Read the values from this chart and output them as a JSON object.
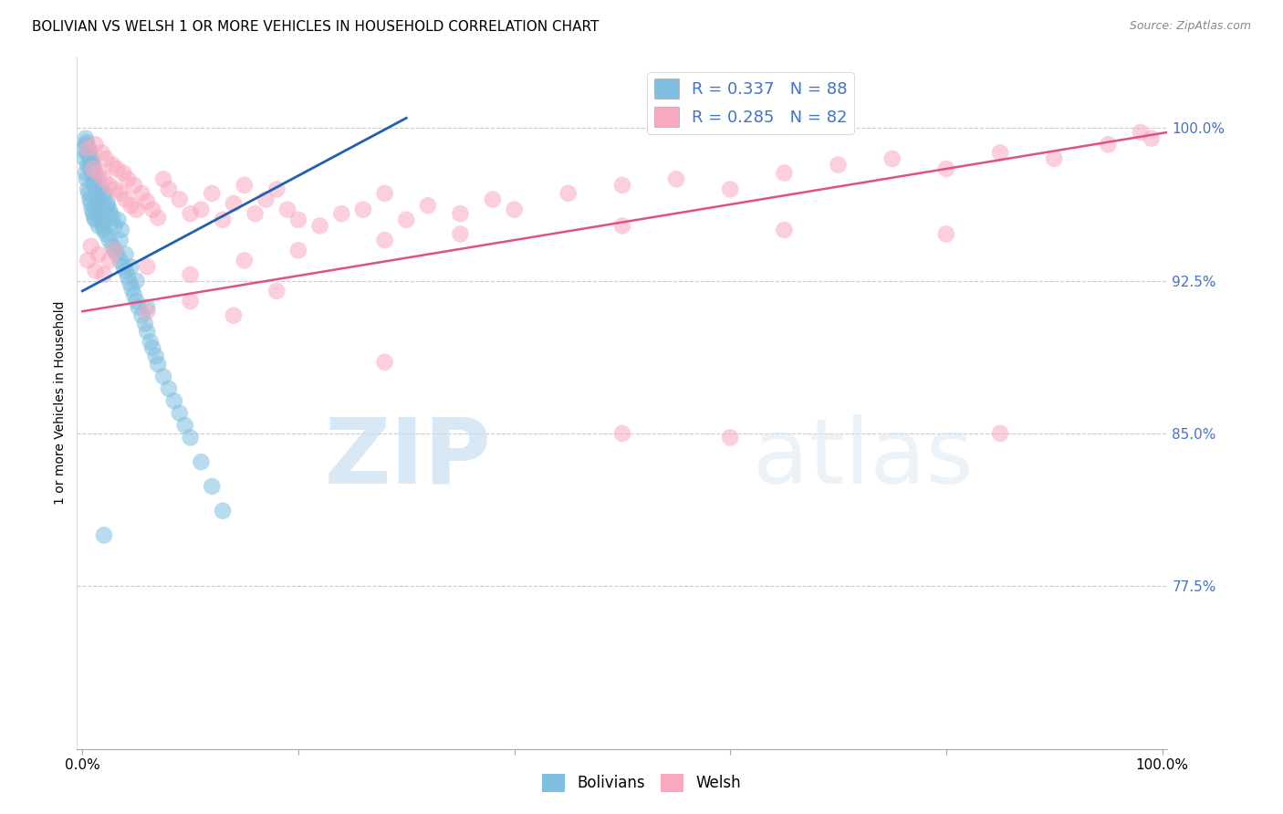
{
  "title": "BOLIVIAN VS WELSH 1 OR MORE VEHICLES IN HOUSEHOLD CORRELATION CHART",
  "source": "Source: ZipAtlas.com",
  "ylabel": "1 or more Vehicles in Household",
  "ytick_labels": [
    "100.0%",
    "92.5%",
    "85.0%",
    "77.5%"
  ],
  "ytick_values": [
    1.0,
    0.925,
    0.85,
    0.775
  ],
  "ymin": 0.695,
  "ymax": 1.035,
  "xmin": -0.005,
  "xmax": 1.005,
  "blue_color": "#7fbfdf",
  "pink_color": "#f8a8bf",
  "blue_line_color": "#2060b0",
  "pink_line_color": "#e05080",
  "watermark_zip": "ZIP",
  "watermark_atlas": "atlas",
  "blue_x": [
    0.001,
    0.002,
    0.003,
    0.003,
    0.004,
    0.004,
    0.005,
    0.005,
    0.006,
    0.006,
    0.007,
    0.007,
    0.008,
    0.008,
    0.009,
    0.009,
    0.01,
    0.01,
    0.011,
    0.011,
    0.012,
    0.012,
    0.013,
    0.014,
    0.015,
    0.015,
    0.016,
    0.017,
    0.018,
    0.019,
    0.02,
    0.02,
    0.022,
    0.023,
    0.025,
    0.026,
    0.028,
    0.03,
    0.032,
    0.033,
    0.035,
    0.036,
    0.038,
    0.04,
    0.042,
    0.044,
    0.046,
    0.048,
    0.05,
    0.052,
    0.055,
    0.058,
    0.06,
    0.063,
    0.065,
    0.068,
    0.07,
    0.075,
    0.08,
    0.085,
    0.09,
    0.095,
    0.1,
    0.11,
    0.12,
    0.13,
    0.003,
    0.004,
    0.005,
    0.006,
    0.007,
    0.008,
    0.009,
    0.01,
    0.012,
    0.015,
    0.018,
    0.02,
    0.023,
    0.025,
    0.028,
    0.03,
    0.035,
    0.04,
    0.045,
    0.05,
    0.06,
    0.02
  ],
  "blue_y": [
    0.99,
    0.985,
    0.992,
    0.978,
    0.988,
    0.975,
    0.982,
    0.97,
    0.987,
    0.968,
    0.983,
    0.965,
    0.98,
    0.963,
    0.978,
    0.96,
    0.975,
    0.958,
    0.973,
    0.956,
    0.97,
    0.955,
    0.968,
    0.965,
    0.963,
    0.952,
    0.96,
    0.958,
    0.955,
    0.952,
    0.95,
    0.968,
    0.948,
    0.962,
    0.945,
    0.958,
    0.942,
    0.94,
    0.938,
    0.955,
    0.935,
    0.95,
    0.932,
    0.93,
    0.927,
    0.924,
    0.921,
    0.918,
    0.915,
    0.912,
    0.908,
    0.904,
    0.9,
    0.895,
    0.892,
    0.888,
    0.884,
    0.878,
    0.872,
    0.866,
    0.86,
    0.854,
    0.848,
    0.836,
    0.824,
    0.812,
    0.995,
    0.993,
    0.991,
    0.989,
    0.987,
    0.985,
    0.983,
    0.981,
    0.978,
    0.974,
    0.97,
    0.967,
    0.963,
    0.96,
    0.956,
    0.952,
    0.945,
    0.938,
    0.932,
    0.925,
    0.912,
    0.8
  ],
  "pink_x": [
    0.005,
    0.01,
    0.012,
    0.015,
    0.018,
    0.02,
    0.022,
    0.025,
    0.028,
    0.03,
    0.032,
    0.035,
    0.038,
    0.04,
    0.042,
    0.045,
    0.048,
    0.05,
    0.055,
    0.06,
    0.065,
    0.07,
    0.075,
    0.08,
    0.09,
    0.1,
    0.11,
    0.12,
    0.13,
    0.14,
    0.15,
    0.16,
    0.17,
    0.18,
    0.19,
    0.2,
    0.22,
    0.24,
    0.26,
    0.28,
    0.3,
    0.32,
    0.35,
    0.38,
    0.4,
    0.45,
    0.5,
    0.55,
    0.6,
    0.65,
    0.7,
    0.75,
    0.8,
    0.85,
    0.9,
    0.95,
    0.98,
    0.99,
    0.005,
    0.008,
    0.012,
    0.015,
    0.02,
    0.025,
    0.03,
    0.06,
    0.1,
    0.15,
    0.2,
    0.28,
    0.35,
    0.5,
    0.65,
    0.8,
    0.06,
    0.1,
    0.14,
    0.18,
    0.5,
    0.85,
    0.28,
    0.6
  ],
  "pink_y": [
    0.99,
    0.98,
    0.992,
    0.978,
    0.988,
    0.975,
    0.985,
    0.972,
    0.982,
    0.97,
    0.98,
    0.968,
    0.978,
    0.965,
    0.975,
    0.962,
    0.972,
    0.96,
    0.968,
    0.964,
    0.96,
    0.956,
    0.975,
    0.97,
    0.965,
    0.958,
    0.96,
    0.968,
    0.955,
    0.963,
    0.972,
    0.958,
    0.965,
    0.97,
    0.96,
    0.955,
    0.952,
    0.958,
    0.96,
    0.968,
    0.955,
    0.962,
    0.958,
    0.965,
    0.96,
    0.968,
    0.972,
    0.975,
    0.97,
    0.978,
    0.982,
    0.985,
    0.98,
    0.988,
    0.985,
    0.992,
    0.998,
    0.995,
    0.935,
    0.942,
    0.93,
    0.938,
    0.928,
    0.935,
    0.94,
    0.932,
    0.928,
    0.935,
    0.94,
    0.945,
    0.948,
    0.952,
    0.95,
    0.948,
    0.91,
    0.915,
    0.908,
    0.92,
    0.85,
    0.85,
    0.885,
    0.848
  ],
  "blue_line_x0": 0.0,
  "blue_line_x1": 0.3,
  "blue_line_y0": 0.92,
  "blue_line_y1": 1.005,
  "pink_line_x0": 0.0,
  "pink_line_x1": 1.005,
  "pink_line_y0": 0.91,
  "pink_line_y1": 0.998
}
